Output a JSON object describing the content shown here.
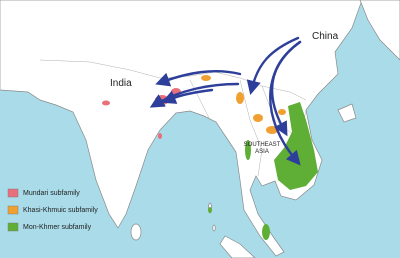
{
  "labels": {
    "china": "China",
    "india": "India",
    "region": [
      "SOUTHEAST",
      "ASIA"
    ]
  },
  "legend": [
    {
      "label": "Mundari subfamily",
      "color": "#e8707a"
    },
    {
      "label": "Khasi-Khmuic subfamily",
      "color": "#f0a030"
    },
    {
      "label": "Mon-Khmer subfamily",
      "color": "#5fae35"
    }
  ]
}
